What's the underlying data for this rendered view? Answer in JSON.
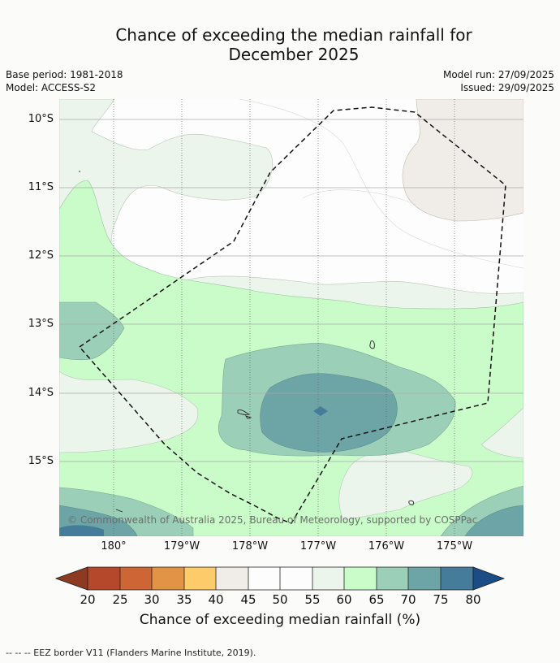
{
  "title_line1": "Chance of exceeding the median rainfall for",
  "title_line2": "December 2025",
  "meta": {
    "base_period": "Base period: 1981-2018",
    "model": "Model: ACCESS-S2",
    "model_run": "Model run: 27/09/2025",
    "issued": "Issued: 29/09/2025"
  },
  "axes": {
    "lat_labels": [
      "10°S",
      "11°S",
      "12°S",
      "13°S",
      "14°S",
      "15°S"
    ],
    "lon_labels": [
      "180°",
      "179°W",
      "178°W",
      "177°W",
      "176°W",
      "175°W"
    ]
  },
  "copyright": "© Commonwealth of Australia 2025, Bureau of Meteorology, supported by COSPPac",
  "colorbar": {
    "ticks": [
      "20",
      "25",
      "30",
      "35",
      "40",
      "45",
      "50",
      "55",
      "60",
      "65",
      "70",
      "75",
      "80"
    ],
    "label": "Chance of exceeding median rainfall (%)",
    "colors": {
      "below20": "#8c3a22",
      "c20": "#b5482a",
      "c25": "#cd6535",
      "c30": "#e09444",
      "c35": "#fecb6a",
      "c40": "#f0ece8",
      "c45": "#fcfdfc",
      "c50": "#fcfdfc",
      "c55": "#ebf5eb",
      "c60": "#cafcca",
      "c65": "#9ccfb8",
      "c70": "#6da5a6",
      "c75": "#457c9a",
      "above80": "#1a4c85"
    }
  },
  "footnote": "--  --  -- EEZ border V11 (Flanders Marine Institute, 2019)."
}
